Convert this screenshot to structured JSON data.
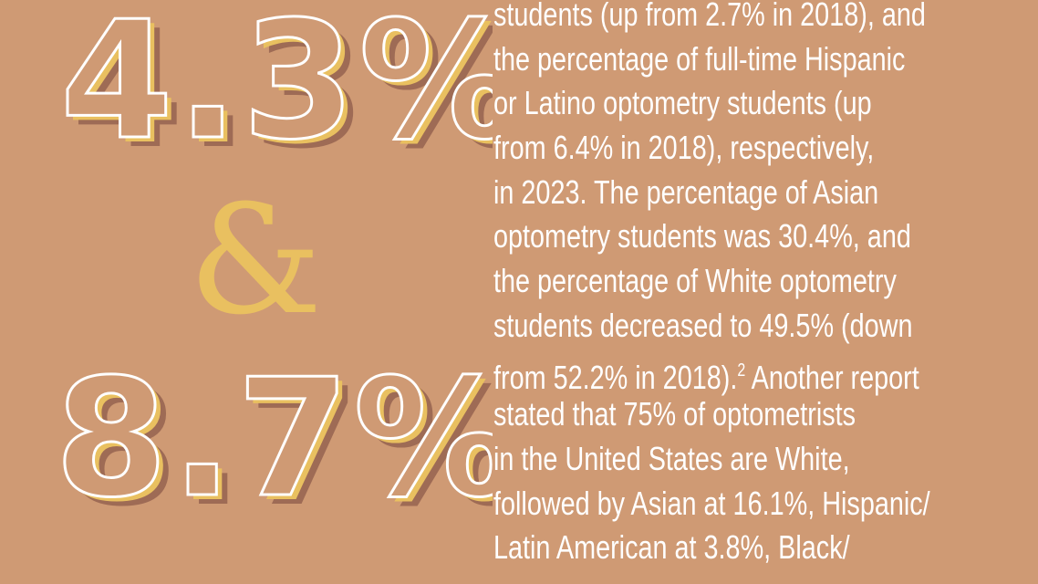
{
  "stats": {
    "first": "4.3%",
    "ampersand": "&",
    "second": "8.7%"
  },
  "colors": {
    "background": "#CF9A74",
    "gold": "#E9C060",
    "shadow": "#9E6B55",
    "outline": "#FFFFFF",
    "text": "#FFFFFF"
  },
  "body": {
    "lines": [
      "students (up from 2.7% in 2018), and",
      "the percentage of full-time Hispanic",
      "or Latino optometry students (up",
      "from 6.4% in 2018), respectively,",
      "in 2023. The percentage of Asian",
      "optometry students was 30.4%, and",
      "the percentage of White optometry",
      "students decreased to 49.5% (down",
      "from 52.2% in 2018).",
      "stated that 75% of optometrists",
      "in the United States are White,",
      "followed by Asian at 16.1%, Hispanic/",
      "Latin American at 3.8%, Black/"
    ],
    "footnote": "2",
    "line9_tail": " Another report"
  }
}
